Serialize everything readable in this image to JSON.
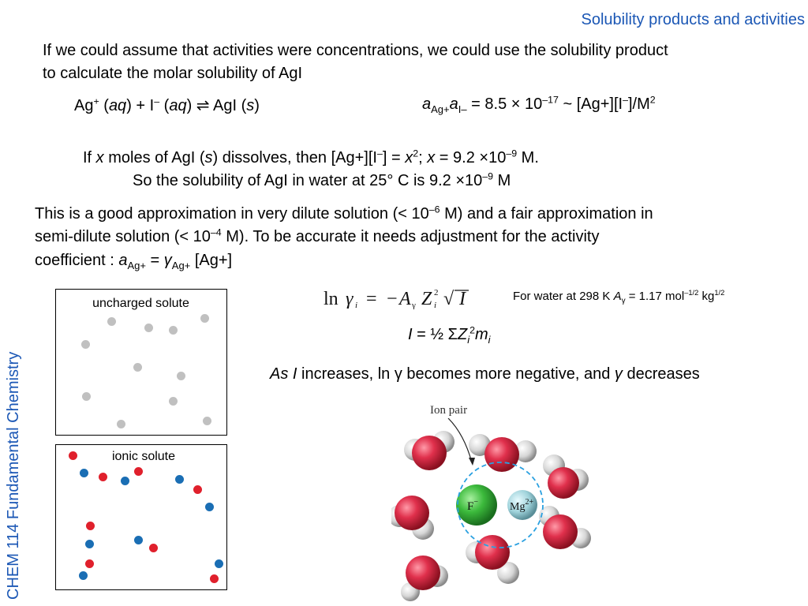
{
  "header": {
    "title": "Solubility products and activities"
  },
  "sidebar": {
    "course": "CHEM 114 Fundamental Chemistry"
  },
  "intro": {
    "line1": "If we could assume that activities were concentrations, we could use the solubility product",
    "line2": "to calculate the molar solubility of AgI"
  },
  "equilibrium": {
    "left": {
      "ag": "Ag",
      "ag_sup": "+",
      "aq": "aq",
      "plus": "+ I",
      "i_sup": "–",
      "arrow": "⇌",
      "agi": "AgI",
      "s": "s"
    },
    "right": {
      "a1": "a",
      "a1_sub": "Ag+",
      "a2": "a",
      "a2_sub": "I–",
      "value": "= 8.5 × 10",
      "exp": "–17",
      "rest": "~ [Ag+][I",
      "i_sup": "–",
      "end": "]/M",
      "m_sup": "2"
    }
  },
  "solution": {
    "line1_a": "If ",
    "x": "x",
    "line1_b": " moles of AgI (",
    "s": "s",
    "line1_c": ") dissolves, then [Ag+][I",
    "i_sup": "–",
    "line1_d": "] = ",
    "x2_sup": "2",
    "line1_e": "; ",
    "line1_f": " = 9.2 ×10",
    "exp": "–9",
    "line1_g": " M.",
    "line2": "So the solubility of AgI in water at 25° C is 9.2 ×10",
    "line2_exp": "–9",
    "line2_end": " M"
  },
  "approx": {
    "line1_a": "This is a good approximation in very dilute solution (< 10",
    "line1_exp": "–6",
    "line1_b": " M) and a fair approximation in",
    "line2_a": "semi-dilute solution (< 10",
    "line2_exp": "–4",
    "line2_b": " M). To be accurate it needs adjustment for the activity",
    "line3_a": "coefficient : ",
    "a": "a",
    "a_sub": "Ag+",
    "eq": " = ",
    "gamma": "γ",
    "g_sub": "Ag+",
    "line3_end": " [Ag+]"
  },
  "panels": {
    "uncharged": "uncharged solute",
    "ionic": "ionic solute"
  },
  "debye": {
    "water_note_a": "For water at 298 K  ",
    "A": "A",
    "A_sub": "γ",
    "water_note_b": " = 1.17 mol",
    "mol_exp": "–1/2",
    "kg": " kg",
    "kg_exp": "1/2",
    "ionic_strength_I": "I",
    "ionic_strength_b": "  = ½ Σ",
    "Z": "Z",
    "Z_sub": "i",
    "Z_sup": "2",
    "m": "m",
    "m_sub": "i",
    "conclusion_a": "As ",
    "conclusion_I": "I",
    "conclusion_b": " increases, ln γ becomes more negative, and ",
    "conclusion_gamma": "γ",
    "conclusion_c": " decreases"
  },
  "figure": {
    "label": "Ion pair",
    "anion": "F",
    "anion_sup": "−",
    "cation": "Mg",
    "cation_sup": "2+"
  },
  "colors": {
    "accent_blue": "#1b57b5",
    "neutral_dot": "#c0c0c0",
    "cation_dot": "#e0202c",
    "anion_dot": "#1a6eb4",
    "ion_pair_ring": "#2aa0e0"
  }
}
